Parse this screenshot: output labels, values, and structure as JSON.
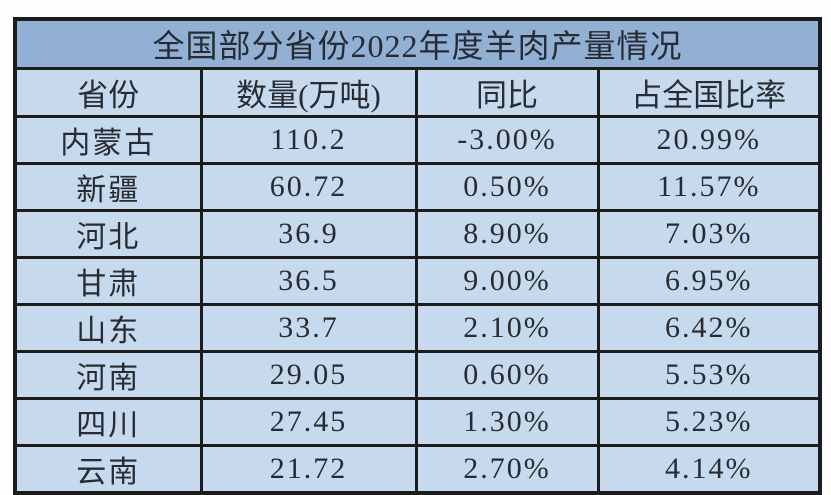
{
  "colors": {
    "title_bg": "#92b0d4",
    "cell_bg": "#c7d9ec",
    "border": "#1c1c1c",
    "text": "#272c34",
    "page_bg": "#fdfdfd"
  },
  "chart_data": {
    "type": "table",
    "title": "全国部分省份2022年度羊肉产量情况",
    "columns": [
      "省份",
      "数量(万吨)",
      "同比",
      "占全国比率"
    ],
    "rows": [
      [
        "内蒙古",
        "110.2",
        "-3.00%",
        "20.99%"
      ],
      [
        "新疆",
        "60.72",
        "0.50%",
        "11.57%"
      ],
      [
        "河北",
        "36.9",
        "8.90%",
        "7.03%"
      ],
      [
        "甘肃",
        "36.5",
        "9.00%",
        "6.95%"
      ],
      [
        "山东",
        "33.7",
        "2.10%",
        "6.42%"
      ],
      [
        "河南",
        "29.05",
        "0.60%",
        "5.53%"
      ],
      [
        "四川",
        "27.45",
        "1.30%",
        "5.23%"
      ],
      [
        "云南",
        "21.72",
        "2.70%",
        "4.14%"
      ]
    ]
  }
}
